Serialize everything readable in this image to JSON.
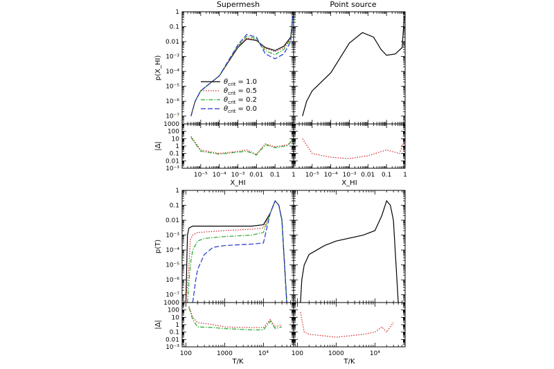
{
  "figure": {
    "column_titles": [
      "Supermesh",
      "Point source"
    ]
  },
  "legend": {
    "entries": [
      {
        "symbol": "θ",
        "sub": "crit",
        "value": "= 1.0",
        "color": "#000000",
        "dash": ""
      },
      {
        "symbol": "θ",
        "sub": "crit",
        "value": "= 0.5",
        "color": "#cc2222",
        "dash": "1.5,2"
      },
      {
        "symbol": "θ",
        "sub": "crit",
        "value": "= 0.2",
        "color": "#22aa22",
        "dash": "6,2,1.5,2"
      },
      {
        "symbol": "θ",
        "sub": "crit",
        "value": "= 0.0",
        "color": "#2233cc",
        "dash": "7,3"
      }
    ]
  },
  "chart_data": [
    {
      "type": "line",
      "panel": "top-left",
      "title": "Supermesh",
      "ylabel": "p(X_HI)",
      "xscale": "log",
      "yscale": "log",
      "xlim": [
        1e-06,
        1
      ],
      "ylim": [
        3e-08,
        1
      ],
      "yticks": [
        "10⁻⁷",
        "10⁻⁶",
        "10⁻⁵",
        "10⁻⁴",
        "10⁻³",
        "0.01",
        "0.1",
        "1"
      ],
      "series": [
        {
          "name": "θcrit = 1.0",
          "x": [
            3e-06,
            5e-06,
            1e-05,
            0.0001,
            0.001,
            0.003,
            0.01,
            0.03,
            0.1,
            0.3,
            0.7,
            0.9
          ],
          "y": [
            1e-07,
            1e-06,
            5e-06,
            5e-05,
            0.004,
            0.015,
            0.012,
            0.004,
            0.0025,
            0.005,
            0.02,
            0.5
          ]
        },
        {
          "name": "θcrit = 0.5",
          "x": [
            3e-06,
            5e-06,
            1e-05,
            0.0001,
            0.001,
            0.003,
            0.01,
            0.03,
            0.1,
            0.3,
            0.7,
            0.9
          ],
          "y": [
            1e-07,
            1e-06,
            5e-06,
            5e-05,
            0.0045,
            0.017,
            0.013,
            0.0035,
            0.002,
            0.004,
            0.018,
            0.5
          ]
        },
        {
          "name": "θcrit = 0.2",
          "x": [
            3e-06,
            5e-06,
            1e-05,
            0.0001,
            0.001,
            0.003,
            0.01,
            0.03,
            0.1,
            0.3,
            0.7,
            0.9
          ],
          "y": [
            1e-07,
            1e-06,
            5e-06,
            5e-05,
            0.005,
            0.022,
            0.016,
            0.0025,
            0.0013,
            0.003,
            0.015,
            0.5
          ]
        },
        {
          "name": "θcrit = 0.0",
          "x": [
            3e-06,
            5e-06,
            1e-05,
            0.0001,
            0.001,
            0.003,
            0.01,
            0.03,
            0.1,
            0.3,
            0.7,
            0.9
          ],
          "y": [
            1e-07,
            1e-06,
            5e-06,
            5e-05,
            0.006,
            0.03,
            0.02,
            0.0015,
            0.0007,
            0.0015,
            0.01,
            0.5
          ]
        }
      ]
    },
    {
      "type": "line",
      "panel": "top-right",
      "title": "Point source",
      "xscale": "log",
      "yscale": "log",
      "xlim": [
        1e-06,
        1
      ],
      "ylim": [
        3e-08,
        1
      ],
      "series": [
        {
          "name": "θcrit = 1.0",
          "x": [
            3e-06,
            5e-06,
            1e-05,
            0.0001,
            0.001,
            0.005,
            0.02,
            0.05,
            0.1,
            0.3,
            0.7,
            0.9
          ],
          "y": [
            1e-07,
            1e-06,
            5e-06,
            8e-05,
            0.008,
            0.04,
            0.02,
            0.003,
            0.0012,
            0.0015,
            0.004,
            0.5
          ]
        }
      ]
    },
    {
      "type": "line",
      "panel": "top-left-residual",
      "ylabel": "|Δ|",
      "xlabel": "X_HI",
      "xscale": "log",
      "yscale": "log",
      "xlim": [
        1e-06,
        1
      ],
      "ylim": [
        0.001,
        1000
      ],
      "xticks": [
        "10⁻⁵",
        "10⁻⁴",
        "10⁻³",
        "0.01",
        "0.1",
        "1"
      ],
      "yticks": [
        "10⁻³",
        "0.01",
        "0.1",
        "1",
        "10",
        "100",
        "1000"
      ],
      "series": [
        {
          "name": "θcrit = 0.5",
          "x": [
            3e-06,
            1e-05,
            0.0001,
            0.001,
            0.003,
            0.01,
            0.03,
            0.1,
            0.5,
            0.9
          ],
          "y": [
            20,
            0.3,
            0.1,
            0.2,
            0.3,
            0.08,
            2,
            0.8,
            1.5,
            10
          ]
        },
        {
          "name": "θcrit = 0.2",
          "x": [
            3e-06,
            1e-05,
            0.0001,
            0.001,
            0.003,
            0.01,
            0.03,
            0.1,
            0.5,
            0.9
          ],
          "y": [
            15,
            0.2,
            0.08,
            0.15,
            0.2,
            0.06,
            1.5,
            0.6,
            1.2,
            8
          ]
        }
      ]
    },
    {
      "type": "line",
      "panel": "top-right-residual",
      "xlabel": "X_HI",
      "xscale": "log",
      "yscale": "log",
      "xlim": [
        1e-06,
        1
      ],
      "ylim": [
        0.001,
        1000
      ],
      "series": [
        {
          "name": "θcrit = 0.5",
          "x": [
            3e-06,
            1e-05,
            0.0001,
            0.001,
            0.01,
            0.1,
            0.5,
            0.9
          ],
          "y": [
            10,
            0.1,
            0.03,
            0.02,
            0.05,
            0.3,
            0.1,
            5
          ]
        }
      ]
    },
    {
      "type": "line",
      "panel": "bottom-left",
      "ylabel": "p(T)",
      "xscale": "log",
      "yscale": "log",
      "xlim": [
        80,
        60000
      ],
      "ylim": [
        3e-08,
        1
      ],
      "yticks": [
        "10⁻⁷",
        "10⁻⁶",
        "10⁻⁵",
        "10⁻⁴",
        "10⁻³",
        "0.01",
        "0.1",
        "1"
      ],
      "series": [
        {
          "name": "θcrit = 1.0",
          "x": [
            100,
            110,
            120,
            150,
            200,
            1000,
            5000,
            10000,
            15000,
            20000,
            25000,
            30000,
            40000
          ],
          "y": [
            3e-08,
            0.001,
            0.003,
            0.004,
            0.004,
            0.004,
            0.004,
            0.005,
            0.03,
            0.2,
            0.1,
            0.01,
            3e-08
          ]
        },
        {
          "name": "θcrit = 0.5",
          "x": [
            100,
            120,
            130,
            150,
            200,
            1000,
            5000,
            10000,
            15000,
            20000,
            25000,
            30000,
            40000
          ],
          "y": [
            3e-08,
            1e-05,
            0.0005,
            0.001,
            0.0015,
            0.002,
            0.0025,
            0.003,
            0.03,
            0.2,
            0.1,
            0.01,
            3e-08
          ]
        },
        {
          "name": "θcrit = 0.2",
          "x": [
            110,
            130,
            150,
            200,
            300,
            1000,
            5000,
            10000,
            15000,
            20000,
            25000,
            30000,
            40000
          ],
          "y": [
            3e-08,
            1e-05,
            0.0001,
            0.0004,
            0.0006,
            0.0008,
            0.001,
            0.0015,
            0.03,
            0.2,
            0.1,
            0.01,
            3e-08
          ]
        },
        {
          "name": "θcrit = 0.0",
          "x": [
            150,
            180,
            200,
            300,
            500,
            1000,
            5000,
            10000,
            15000,
            20000,
            25000,
            30000,
            40000
          ],
          "y": [
            3e-08,
            1e-06,
            5e-06,
            5e-05,
            0.00015,
            0.0002,
            0.00025,
            0.0003,
            0.03,
            0.2,
            0.1,
            0.01,
            3e-08
          ]
        }
      ]
    },
    {
      "type": "line",
      "panel": "bottom-right",
      "xscale": "log",
      "yscale": "log",
      "xlim": [
        80,
        60000
      ],
      "ylim": [
        3e-08,
        1
      ],
      "series": [
        {
          "name": "θcrit = 1.0",
          "x": [
            120,
            130,
            150,
            200,
            500,
            1000,
            5000,
            10000,
            15000,
            20000,
            25000,
            30000,
            40000
          ],
          "y": [
            3e-08,
            1e-06,
            1e-05,
            5e-05,
            0.0002,
            0.0004,
            0.001,
            0.002,
            0.02,
            0.2,
            0.1,
            0.01,
            3e-08
          ]
        }
      ]
    },
    {
      "type": "line",
      "panel": "bottom-left-residual",
      "ylabel": "|Δ|",
      "xlabel": "T/K",
      "xscale": "log",
      "yscale": "log",
      "xlim": [
        80,
        60000
      ],
      "ylim": [
        0.001,
        1000
      ],
      "xticks": [
        "100",
        "1000",
        "10⁴"
      ],
      "yticks": [
        "10⁻³",
        "0.01",
        "0.1",
        "1",
        "10",
        "100",
        "1000"
      ],
      "series": [
        {
          "name": "θcrit = 0.5",
          "x": [
            120,
            150,
            200,
            500,
            1000,
            5000,
            10000,
            15000,
            20000,
            30000
          ],
          "y": [
            300,
            10,
            2,
            1,
            0.5,
            0.4,
            0.4,
            5,
            0.5,
            1
          ]
        },
        {
          "name": "θcrit = 0.2",
          "x": [
            120,
            150,
            200,
            500,
            1000,
            5000,
            10000,
            15000,
            20000,
            30000
          ],
          "y": [
            200,
            5,
            0.5,
            0.4,
            0.3,
            0.2,
            0.2,
            3,
            0.3,
            0.5
          ]
        }
      ]
    },
    {
      "type": "line",
      "panel": "bottom-right-residual",
      "xlabel": "T/K",
      "xscale": "log",
      "yscale": "log",
      "xlim": [
        80,
        60000
      ],
      "ylim": [
        0.001,
        1000
      ],
      "series": [
        {
          "name": "θcrit = 0.5",
          "x": [
            120,
            150,
            200,
            500,
            1000,
            5000,
            10000,
            15000,
            20000,
            30000
          ],
          "y": [
            50,
            0.1,
            0.05,
            0.03,
            0.02,
            0.05,
            0.1,
            0.5,
            0.1,
            2
          ]
        }
      ]
    }
  ]
}
